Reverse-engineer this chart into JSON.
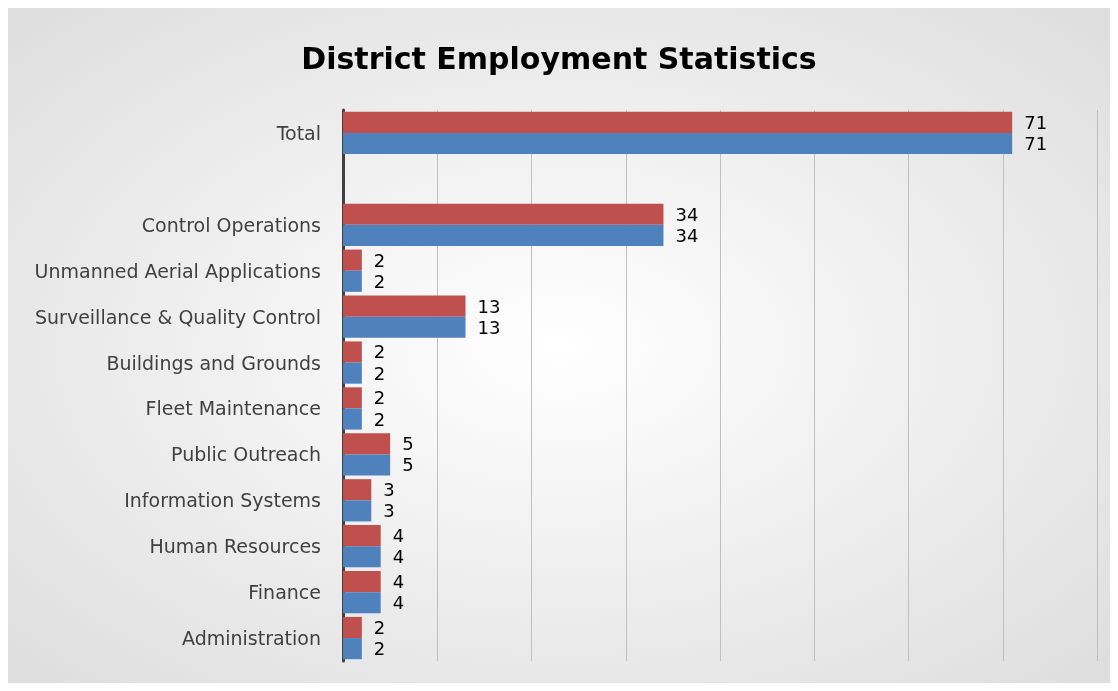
{
  "chart_data": {
    "type": "bar",
    "orientation": "horizontal",
    "title": "District Employment Statistics",
    "categories": [
      "Total",
      null,
      "Control Operations",
      "Unmanned Aerial Applications",
      "Surveillance & Quality Control",
      "Buildings and Grounds",
      "Fleet Maintenance",
      "Public Outreach",
      "Information Systems",
      "Human Resources",
      "Finance",
      "Administration"
    ],
    "series": [
      {
        "color": "#c0504d",
        "values": [
          71,
          null,
          34,
          2,
          13,
          2,
          2,
          5,
          3,
          4,
          4,
          2
        ]
      },
      {
        "color": "#4f81bd",
        "values": [
          71,
          null,
          34,
          2,
          13,
          2,
          2,
          5,
          3,
          4,
          4,
          2
        ]
      }
    ],
    "xlim": [
      0,
      80
    ],
    "xticks": [
      {
        "value": 0,
        "label": null
      },
      {
        "value": 10,
        "label": null
      },
      {
        "value": 20,
        "label": null
      },
      {
        "value": 30,
        "label": null
      },
      {
        "value": 40,
        "label": null
      },
      {
        "value": 50,
        "label": null
      },
      {
        "value": 60,
        "label": null
      },
      {
        "value": 70,
        "label": null
      },
      {
        "value": 80,
        "label": null
      }
    ],
    "tick_labels": "y",
    "grid": "x",
    "data_labels": true
  }
}
